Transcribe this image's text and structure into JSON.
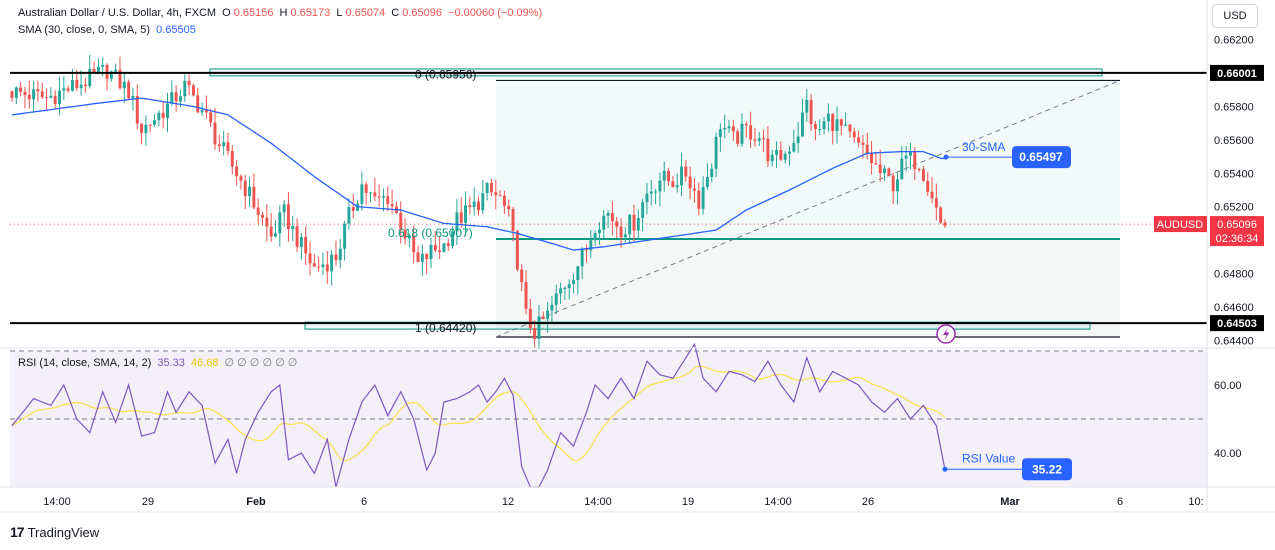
{
  "header": {
    "symbol": "Australian Dollar / U.S. Dollar, 4h, FXCM",
    "ohlc": [
      {
        "label": "O",
        "value": "0.65156"
      },
      {
        "label": "H",
        "value": "0.65173"
      },
      {
        "label": "L",
        "value": "0.65074"
      },
      {
        "label": "C",
        "value": "0.65096"
      }
    ],
    "change": "−0.00060 (−0.09%)",
    "sma_label": "SMA (30, close, 0, SMA, 5)",
    "sma_value": "0.65505",
    "rsi_label": "RSI (14, close, SMA, 14, 2)",
    "rsi_value": "35.33",
    "rsi_sma_value": "46.68",
    "rsi_extra": "∅ ∅ ∅ ∅ ∅ ∅",
    "currency": "USD"
  },
  "colors": {
    "up": "#26a69a",
    "down": "#ef5350",
    "sma": "#2962ff",
    "rsi": "#7e57c2",
    "rsi_ma": "#f7e34a",
    "hline": "#000000",
    "fib_line": "#089981",
    "price_badge": "#f23645",
    "label_badge": "#2962ff"
  },
  "chart_data": {
    "type": "candlestick",
    "ylim": [
      0.6436,
      0.6627
    ],
    "yticks": [
      "0.66200",
      "0.66000",
      "0.65800",
      "0.65600",
      "0.65400",
      "0.65200",
      "0.65000",
      "0.64800",
      "0.64600",
      "0.64400"
    ],
    "xticks": [
      "14:00",
      "29",
      "Feb",
      "6",
      "12",
      "14:00",
      "19",
      "14:00",
      "26",
      "Mar",
      "6",
      "10:"
    ],
    "hlines": [
      {
        "value": 0.66001,
        "label": "0.66001"
      },
      {
        "value": 0.64503,
        "label": "0.64503"
      }
    ],
    "fib_levels": [
      {
        "label": "0 (0.65956)",
        "value": 0.65956
      },
      {
        "label": "0.618 (0.65007)",
        "value": 0.65007
      },
      {
        "label": "1 (0.64420)",
        "value": 0.6442
      }
    ],
    "current_price": {
      "symbol": "AUDUSD",
      "value": "0.65096",
      "countdown": "02:36:34"
    },
    "sma_annotation": {
      "text": "30-SMA",
      "value": "0.65497"
    },
    "rsi_annotation": {
      "text": "RSI Value",
      "value": "35.22"
    },
    "rsi_ylim": [
      25,
      75
    ],
    "rsi_ticks": [
      "60.00",
      "40.00"
    ],
    "rsi_bands": [
      70,
      50,
      30
    ],
    "price_anchors": [
      [
        0,
        0.6589
      ],
      [
        8,
        0.6585
      ],
      [
        16,
        0.6594
      ],
      [
        22,
        0.6602
      ],
      [
        27,
        0.6589
      ],
      [
        30,
        0.6566
      ],
      [
        36,
        0.658
      ],
      [
        40,
        0.6592
      ],
      [
        44,
        0.6578
      ],
      [
        48,
        0.6557
      ],
      [
        52,
        0.654
      ],
      [
        55,
        0.6527
      ],
      [
        60,
        0.6502
      ],
      [
        63,
        0.6516
      ],
      [
        67,
        0.6496
      ],
      [
        70,
        0.6483
      ],
      [
        75,
        0.649
      ],
      [
        78,
        0.6514
      ],
      [
        81,
        0.6533
      ],
      [
        84,
        0.6523
      ],
      [
        87,
        0.6526
      ],
      [
        90,
        0.651
      ],
      [
        94,
        0.6485
      ],
      [
        97,
        0.6493
      ],
      [
        100,
        0.6497
      ],
      [
        103,
        0.6512
      ],
      [
        107,
        0.652
      ],
      [
        110,
        0.6529
      ],
      [
        113,
        0.6525
      ],
      [
        115,
        0.6513
      ],
      [
        117,
        0.6488
      ],
      [
        119,
        0.6454
      ],
      [
        121,
        0.6445
      ],
      [
        124,
        0.6455
      ],
      [
        127,
        0.647
      ],
      [
        130,
        0.6481
      ],
      [
        133,
        0.6495
      ],
      [
        135,
        0.651
      ],
      [
        138,
        0.6516
      ],
      [
        141,
        0.6507
      ],
      [
        144,
        0.6511
      ],
      [
        147,
        0.6528
      ],
      [
        150,
        0.6537
      ],
      [
        153,
        0.6535
      ],
      [
        156,
        0.654
      ],
      [
        159,
        0.6524
      ],
      [
        162,
        0.6547
      ],
      [
        164,
        0.657
      ],
      [
        167,
        0.656
      ],
      [
        170,
        0.6566
      ],
      [
        173,
        0.6562
      ],
      [
        176,
        0.6547
      ],
      [
        179,
        0.6552
      ],
      [
        182,
        0.6565
      ],
      [
        184,
        0.6582
      ],
      [
        186,
        0.6563
      ],
      [
        189,
        0.6573
      ],
      [
        192,
        0.6567
      ],
      [
        195,
        0.6558
      ],
      [
        198,
        0.6551
      ],
      [
        201,
        0.654
      ],
      [
        204,
        0.6534
      ],
      [
        207,
        0.6549
      ],
      [
        210,
        0.6547
      ],
      [
        213,
        0.6528
      ],
      [
        215,
        0.651
      ]
    ],
    "sma_anchors": [
      [
        0,
        0.6575
      ],
      [
        20,
        0.6582
      ],
      [
        30,
        0.6585
      ],
      [
        42,
        0.658
      ],
      [
        50,
        0.6575
      ],
      [
        60,
        0.6558
      ],
      [
        70,
        0.6538
      ],
      [
        80,
        0.652
      ],
      [
        90,
        0.6518
      ],
      [
        100,
        0.651
      ],
      [
        110,
        0.6508
      ],
      [
        117,
        0.6504
      ],
      [
        125,
        0.6498
      ],
      [
        130,
        0.6494
      ],
      [
        137,
        0.6496
      ],
      [
        150,
        0.6501
      ],
      [
        163,
        0.6506
      ],
      [
        170,
        0.6518
      ],
      [
        180,
        0.653
      ],
      [
        190,
        0.6543
      ],
      [
        198,
        0.6552
      ],
      [
        206,
        0.6553
      ],
      [
        211,
        0.6553
      ],
      [
        215,
        0.6549
      ]
    ],
    "rsi_anchors": [
      [
        0,
        48
      ],
      [
        5,
        56
      ],
      [
        9,
        54
      ],
      [
        12,
        60
      ],
      [
        15,
        50
      ],
      [
        18,
        46
      ],
      [
        21,
        58
      ],
      [
        24,
        49
      ],
      [
        27,
        60
      ],
      [
        30,
        45
      ],
      [
        33,
        46
      ],
      [
        36,
        58
      ],
      [
        38,
        52
      ],
      [
        41,
        58
      ],
      [
        44,
        54
      ],
      [
        47,
        37
      ],
      [
        50,
        44
      ],
      [
        52,
        34
      ],
      [
        54,
        44
      ],
      [
        57,
        52
      ],
      [
        60,
        58
      ],
      [
        62,
        60
      ],
      [
        64,
        38
      ],
      [
        67,
        40
      ],
      [
        70,
        34
      ],
      [
        73,
        44
      ],
      [
        75,
        30
      ],
      [
        78,
        44
      ],
      [
        81,
        55
      ],
      [
        84,
        60
      ],
      [
        87,
        51
      ],
      [
        90,
        58
      ],
      [
        93,
        50
      ],
      [
        96,
        35
      ],
      [
        98,
        40
      ],
      [
        100,
        55
      ],
      [
        103,
        56
      ],
      [
        106,
        58
      ],
      [
        108,
        60
      ],
      [
        110,
        55
      ],
      [
        112,
        58
      ],
      [
        114,
        62
      ],
      [
        116,
        57
      ],
      [
        118,
        36
      ],
      [
        120,
        30
      ],
      [
        122,
        30
      ],
      [
        124,
        35
      ],
      [
        127,
        46
      ],
      [
        130,
        42
      ],
      [
        133,
        52
      ],
      [
        135,
        60
      ],
      [
        138,
        56
      ],
      [
        141,
        62
      ],
      [
        144,
        56
      ],
      [
        147,
        67
      ],
      [
        150,
        63
      ],
      [
        153,
        62
      ],
      [
        156,
        68
      ],
      [
        158,
        72
      ],
      [
        160,
        62
      ],
      [
        163,
        58
      ],
      [
        166,
        64
      ],
      [
        169,
        63
      ],
      [
        172,
        61
      ],
      [
        175,
        67
      ],
      [
        178,
        60
      ],
      [
        181,
        55
      ],
      [
        184,
        68
      ],
      [
        187,
        58
      ],
      [
        190,
        64
      ],
      [
        193,
        62
      ],
      [
        196,
        60
      ],
      [
        199,
        55
      ],
      [
        202,
        52
      ],
      [
        205,
        56
      ],
      [
        208,
        50
      ],
      [
        211,
        54
      ],
      [
        214,
        48
      ],
      [
        216,
        35
      ]
    ]
  },
  "footer": {
    "brand": "TradingView"
  }
}
